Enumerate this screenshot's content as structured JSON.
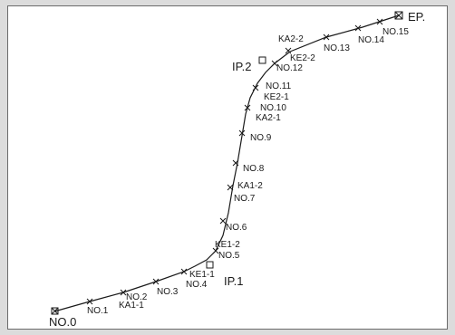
{
  "labels": {
    "no0": "NO.0",
    "no1": "NO.1",
    "ka1_1": "KA1-1",
    "no2": "NO.2",
    "no3": "NO.3",
    "no4": "NO.4",
    "ke1_1": "KE1-1",
    "ip1": "IP.1",
    "no5": "NO.5",
    "ke1_2": "KE1-2",
    "no6": "NO.6",
    "no7": "NO.7",
    "ka1_2": "KA1-2",
    "no8": "NO.8",
    "no9": "NO.9",
    "ka2_1": "KA2-1",
    "no10": "NO.10",
    "ke2_1": "KE2-1",
    "no11": "NO.11",
    "ip2": "IP.2",
    "no12": "NO.12",
    "ke2_2": "KE2-2",
    "ka2_2": "KA2-2",
    "no13": "NO.13",
    "no14": "NO.14",
    "no15": "NO.15",
    "ep": "EP."
  },
  "colors": {
    "line": "#1a1a1a",
    "frame": "#6b6b6b",
    "background": "#ffffff"
  }
}
